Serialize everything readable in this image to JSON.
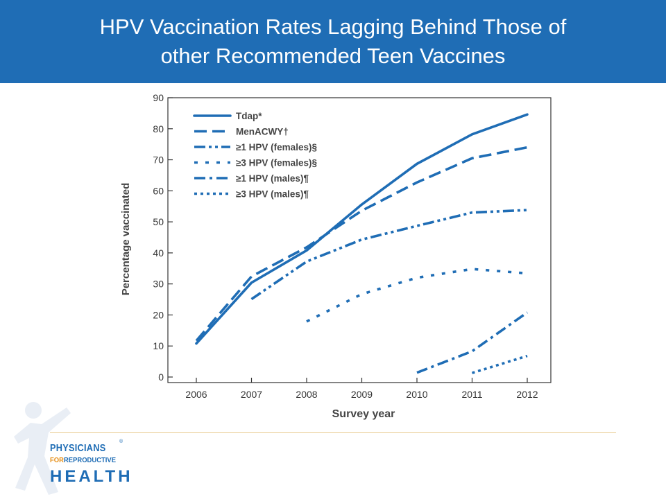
{
  "title": "HPV Vaccination Rates Lagging Behind Those of\nother Recommended Teen Vaccines",
  "colors": {
    "title_bg": "#1f6db5",
    "series": "#1f6db5",
    "logo_accent": "#e6901a",
    "rule": "#e8c98a"
  },
  "logo": {
    "line1": "PHYSICIANS",
    "line2_for": "FOR",
    "line2_rest": "REPRODUCTIVE",
    "line3": "HEALTH",
    "registered": "®"
  },
  "chart_data": {
    "type": "line",
    "title": "",
    "xlabel": "Survey year",
    "ylabel": "Percentage vaccinated",
    "x": [
      2006,
      2007,
      2008,
      2009,
      2010,
      2011,
      2012
    ],
    "xticks": [
      "2006",
      "2007",
      "2008",
      "2009",
      "2010",
      "2011",
      "2012"
    ],
    "yticks": [
      "0",
      "10",
      "20",
      "30",
      "40",
      "50",
      "60",
      "70",
      "80",
      "90"
    ],
    "xlim": [
      2006,
      2012
    ],
    "ylim": [
      0,
      90
    ],
    "grid": false,
    "legend_position": "top-left",
    "series": [
      {
        "name": "Tdap*",
        "style": "solid",
        "x": [
          2006,
          2007,
          2008,
          2009,
          2010,
          2011,
          2012
        ],
        "values": [
          10.8,
          30.4,
          40.8,
          55.6,
          68.7,
          78.2,
          84.6
        ]
      },
      {
        "name": "MenACWY†",
        "style": "dash",
        "x": [
          2006,
          2007,
          2008,
          2009,
          2010,
          2011,
          2012
        ],
        "values": [
          11.7,
          32.4,
          41.8,
          53.6,
          62.7,
          70.5,
          74.0
        ]
      },
      {
        "name": "≥1 HPV (females)§",
        "style": "dashdotdot",
        "x": [
          2007,
          2008,
          2009,
          2010,
          2011,
          2012
        ],
        "values": [
          25.1,
          37.2,
          44.3,
          48.7,
          53.0,
          53.8
        ]
      },
      {
        "name": "≥3 HPV (females)§",
        "style": "dot-wide",
        "x": [
          2008,
          2009,
          2010,
          2011,
          2012
        ],
        "values": [
          17.9,
          26.7,
          32.0,
          34.8,
          33.4
        ]
      },
      {
        "name": "≥1 HPV (males)¶",
        "style": "dashdot",
        "x": [
          2010,
          2011,
          2012
        ],
        "values": [
          1.4,
          8.3,
          20.8
        ]
      },
      {
        "name": "≥3 HPV (males)¶",
        "style": "dot",
        "x": [
          2011,
          2012
        ],
        "values": [
          1.3,
          6.8
        ]
      }
    ]
  }
}
